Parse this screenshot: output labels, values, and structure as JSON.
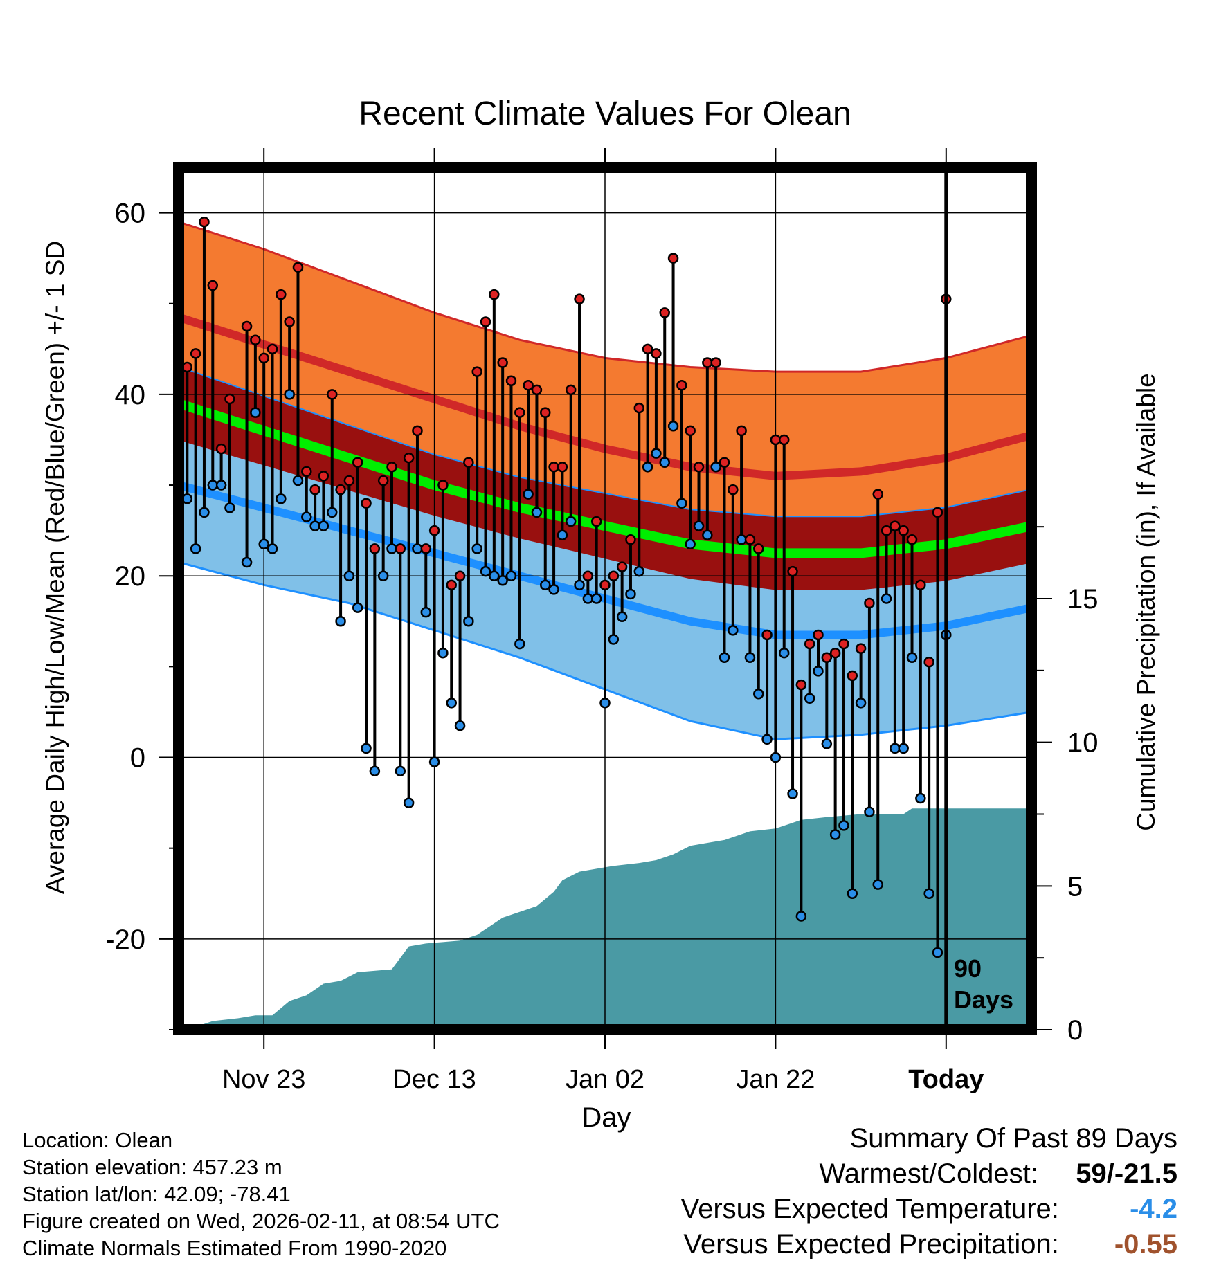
{
  "chart_data": {
    "type": "line",
    "title": "Recent Climate Values For Olean",
    "xlabel": "Day",
    "ylabel": "Average Daily High/Low/Mean (Red/Blue/Green) +/- 1 SD",
    "ylabel_right": "Cumulative Precipitation (in), If Available",
    "x_range_days": [
      -91,
      9
    ],
    "ylim": [
      -30,
      65
    ],
    "ylim_right": [
      0,
      30
    ],
    "x_ticks": [
      {
        "day": -81,
        "label": "Nov 23"
      },
      {
        "day": -61,
        "label": "Dec 13"
      },
      {
        "day": -41,
        "label": "Jan 02"
      },
      {
        "day": -21,
        "label": "Jan 22"
      },
      {
        "day": -1,
        "label": "Today"
      }
    ],
    "y_ticks": [
      -20,
      0,
      20,
      40,
      60
    ],
    "y_ticks_right": [
      0,
      5,
      10,
      15
    ],
    "today_marker": {
      "day": -1,
      "label_line1": "90",
      "label_line2": "Days"
    },
    "normals": {
      "days": [
        -91,
        -81,
        -71,
        -61,
        -51,
        -41,
        -31,
        -21,
        -11,
        -1,
        9
      ],
      "high_mean": [
        48.5,
        45.5,
        42.5,
        39.5,
        36.5,
        34,
        32,
        31,
        31.5,
        33,
        35.5
      ],
      "high_plus_sd": [
        59,
        56,
        52.5,
        49,
        46,
        44,
        43,
        42.5,
        42.5,
        44,
        46.5
      ],
      "mean_temp": [
        39,
        36,
        33,
        30,
        27.5,
        25.5,
        23.5,
        22.5,
        22.5,
        23.5,
        25.5
      ],
      "low_mean": [
        30,
        27.5,
        25,
        22.5,
        20,
        17.5,
        15,
        13.5,
        13.5,
        14.5,
        16.5
      ],
      "low_minus_sd": [
        21.5,
        19,
        17,
        14,
        11,
        7.5,
        4,
        2,
        2.5,
        3.5,
        5
      ]
    },
    "series": [
      {
        "name": "High",
        "color": "#dd2222",
        "values": [
          43,
          44.5,
          59,
          52,
          34,
          39.5,
          null,
          47.5,
          46,
          44,
          45,
          51,
          48,
          54,
          31.5,
          29.5,
          31,
          40,
          29.5,
          30.5,
          32.5,
          28,
          23,
          30.5,
          32,
          23,
          33,
          36,
          23,
          25,
          30,
          19,
          20,
          32.5,
          42.5,
          48,
          51,
          43.5,
          41.5,
          38,
          41,
          40.5,
          38,
          32,
          32,
          40.5,
          50.5,
          20,
          26,
          19,
          20,
          21,
          24,
          38.5,
          45,
          44.5,
          49,
          55,
          41,
          36,
          32,
          43.5,
          43.5,
          32.5,
          29.5,
          36,
          24,
          23,
          13.5,
          35,
          35,
          20.5,
          8,
          12.5,
          13.5,
          11,
          11.5,
          12.5,
          9,
          12,
          17,
          29,
          25,
          25.5,
          25,
          24,
          19,
          10.5,
          27,
          50.5
        ]
      },
      {
        "name": "Low",
        "color": "#2a8ee8",
        "values": [
          28.5,
          23,
          27,
          30,
          30,
          27.5,
          null,
          21.5,
          38,
          23.5,
          23,
          28.5,
          40,
          30.5,
          26.5,
          25.5,
          25.5,
          27,
          15,
          20,
          16.5,
          1,
          -1.5,
          20,
          23,
          -1.5,
          -5,
          23,
          16,
          -0.5,
          11.5,
          6,
          3.5,
          15,
          23,
          20.5,
          20,
          19.5,
          20,
          12.5,
          29,
          27,
          19,
          18.5,
          24.5,
          26,
          19,
          17.5,
          17.5,
          6,
          13,
          15.5,
          18,
          20.5,
          32,
          33.5,
          32.5,
          36.5,
          28,
          23.5,
          25.5,
          24.5,
          32,
          11,
          14,
          24,
          11,
          7,
          2,
          0,
          11.5,
          -4,
          -17.5,
          6.5,
          9.5,
          1.5,
          -8.5,
          -7.5,
          -15,
          6,
          -6,
          -14,
          17.5,
          1,
          1,
          11,
          -4.5,
          -15,
          -21.5,
          13.5
        ]
      }
    ],
    "precipitation_cumulative": {
      "days": [
        -89,
        -87,
        -84,
        -82,
        -80,
        -78,
        -76,
        -74,
        -72,
        -70,
        -66,
        -64,
        -62,
        -58,
        -56,
        -53,
        -51,
        -49,
        -47,
        -46,
        -44,
        -42,
        -40,
        -37,
        -35,
        -33,
        -31,
        -27,
        -24,
        -21,
        -20,
        -19,
        -18,
        -15,
        -11,
        -6,
        -5,
        9
      ],
      "values": [
        0.1,
        0.3,
        0.4,
        0.5,
        0.5,
        1,
        1.2,
        1.6,
        1.7,
        2,
        2.1,
        2.9,
        3,
        3.1,
        3.3,
        3.9,
        4.1,
        4.3,
        4.8,
        5.2,
        5.5,
        5.6,
        5.7,
        5.8,
        5.9,
        6.1,
        6.4,
        6.6,
        6.9,
        7.0,
        7.1,
        7.2,
        7.3,
        7.4,
        7.5,
        7.5,
        7.7,
        7.7
      ]
    }
  },
  "info": {
    "location": "Location: Olean",
    "elevation": "Station elevation: 457.23 m",
    "latlon": "Station lat/lon: 42.09; -78.41",
    "created": "Figure created on Wed, 2026-02-11, at 08:54 UTC",
    "normals": "Climate Normals Estimated From 1990-2020"
  },
  "summary": {
    "title": "Summary Of Past 89 Days",
    "warmest_label": "Warmest/Coldest:",
    "warmest_value": "59/-21.5",
    "temp_label": "Versus Expected Temperature:",
    "temp_value": "-4.2",
    "temp_color": "#2a8ee8",
    "precip_label": "Versus Expected Precipitation:",
    "precip_value": "-0.55",
    "precip_color": "#a0522d"
  },
  "colors": {
    "high_band": "#f47a30",
    "high_line": "#d02828",
    "low_band": "#80c0e8",
    "low_line": "#1e90ff",
    "mean_band": "#99100f",
    "mean_line": "#00ee00",
    "precip": "#4a9aa4"
  }
}
